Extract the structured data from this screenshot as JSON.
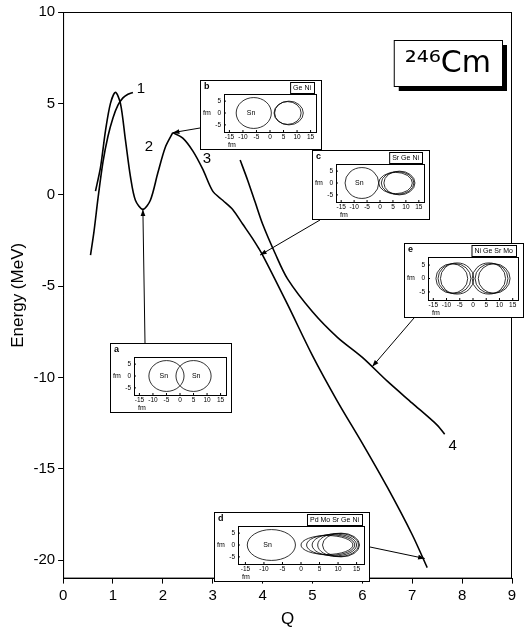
{
  "chart_data": {
    "type": "line",
    "title": "²⁴⁶Cm",
    "x_label": "Q",
    "y_label": "Energy (MeV)",
    "xlim": [
      0,
      9
    ],
    "xticks": [
      0,
      1,
      2,
      3,
      4,
      5,
      6,
      7,
      8,
      9
    ],
    "ylim": [
      -21,
      10
    ],
    "yticks": [
      -20,
      -15,
      -10,
      -5,
      0,
      5,
      10
    ],
    "grid": false,
    "series": [
      {
        "name": "1",
        "color": "#000000",
        "x": [
          0.55,
          0.62,
          0.7,
          0.8,
          0.9,
          1.0,
          1.1,
          1.2,
          1.3,
          1.4
        ],
        "values": [
          -3.3,
          -2.0,
          -0.2,
          1.8,
          3.2,
          4.2,
          4.9,
          5.3,
          5.5,
          5.6
        ]
      },
      {
        "name": "2",
        "color": "#000000",
        "x": [
          0.65,
          0.75,
          0.85,
          0.95,
          1.05,
          1.15,
          1.25,
          1.35,
          1.45,
          1.6,
          1.75,
          1.9,
          2.05,
          2.2
        ],
        "values": [
          0.2,
          1.5,
          3.5,
          5.0,
          5.6,
          5.0,
          3.0,
          1.0,
          -0.3,
          -0.8,
          -0.3,
          1.2,
          2.6,
          3.4
        ]
      },
      {
        "name": "3",
        "color": "#000000",
        "x": [
          2.2,
          2.4,
          2.6,
          2.8,
          3.0,
          3.2,
          3.4,
          3.6,
          3.8,
          4.0,
          4.5,
          5.0,
          5.5,
          6.0,
          6.5,
          7.0,
          7.3
        ],
        "values": [
          3.4,
          3.1,
          2.4,
          1.4,
          0.2,
          -0.3,
          -0.8,
          -1.6,
          -2.4,
          -3.3,
          -6.0,
          -8.8,
          -11.3,
          -13.6,
          -16.0,
          -18.6,
          -20.4
        ]
      },
      {
        "name": "4",
        "color": "#000000",
        "x": [
          3.55,
          3.7,
          3.85,
          4.0,
          4.25,
          4.5,
          5.0,
          5.5,
          6.0,
          6.5,
          7.0,
          7.5,
          7.65
        ],
        "values": [
          1.9,
          0.8,
          -0.4,
          -1.6,
          -3.2,
          -4.6,
          -6.4,
          -7.8,
          -8.9,
          -10.2,
          -11.4,
          -12.6,
          -13.1
        ]
      }
    ],
    "insets": [
      {
        "label": "a",
        "fragment_labels": [
          "Sn",
          "Sn"
        ],
        "xlim": [
          -17,
          17
        ],
        "ylim": [
          -8,
          8
        ],
        "xticks": [
          -15,
          -10,
          -5,
          0,
          5,
          10,
          15
        ],
        "yticks": [
          -5,
          0,
          5
        ],
        "x_label": "fm",
        "y_label": "fm",
        "points_to": {
          "x": 1.6,
          "y": -0.8
        }
      },
      {
        "label": "b",
        "fragment_labels": [
          "Sn"
        ],
        "top_labels": [
          "Ge",
          "Ni"
        ],
        "xlim": [
          -17,
          17
        ],
        "ylim": [
          -8,
          8
        ],
        "xticks": [
          -15,
          -10,
          -5,
          0,
          5,
          10,
          15
        ],
        "yticks": [
          -5,
          0,
          5
        ],
        "x_label": "fm",
        "y_label": "fm",
        "points_to": {
          "x": 2.2,
          "y": 3.4
        }
      },
      {
        "label": "c",
        "fragment_labels": [
          "Sn"
        ],
        "top_labels": [
          "Sr",
          "Ge",
          "Ni"
        ],
        "xlim": [
          -17,
          17
        ],
        "ylim": [
          -8,
          8
        ],
        "xticks": [
          -15,
          -10,
          -5,
          0,
          5,
          10,
          15
        ],
        "yticks": [
          -5,
          0,
          5
        ],
        "x_label": "fm",
        "y_label": "fm",
        "points_to": {
          "x": 3.95,
          "y": -3.3
        }
      },
      {
        "label": "d",
        "fragment_labels": [
          "Sn"
        ],
        "top_labels": [
          "Pd",
          "Mo",
          "Sr",
          "Ge",
          "Ni"
        ],
        "xlim": [
          -17,
          17
        ],
        "ylim": [
          -8,
          8
        ],
        "xticks": [
          -15,
          -10,
          -5,
          0,
          5,
          10,
          15
        ],
        "yticks": [
          -5,
          0,
          5
        ],
        "x_label": "fm",
        "y_label": "fm",
        "points_to": {
          "x": 7.25,
          "y": -19.9
        }
      },
      {
        "label": "e",
        "top_labels": [
          "Ni",
          "Ge",
          "Sr",
          "Mo"
        ],
        "xlim": [
          -17,
          17
        ],
        "ylim": [
          -8,
          8
        ],
        "xticks": [
          -15,
          -10,
          -5,
          0,
          5,
          10,
          15
        ],
        "yticks": [
          -5,
          0,
          5
        ],
        "x_label": "fm",
        "y_label": "fm",
        "points_to": {
          "x": 6.2,
          "y": -9.4
        }
      }
    ]
  }
}
